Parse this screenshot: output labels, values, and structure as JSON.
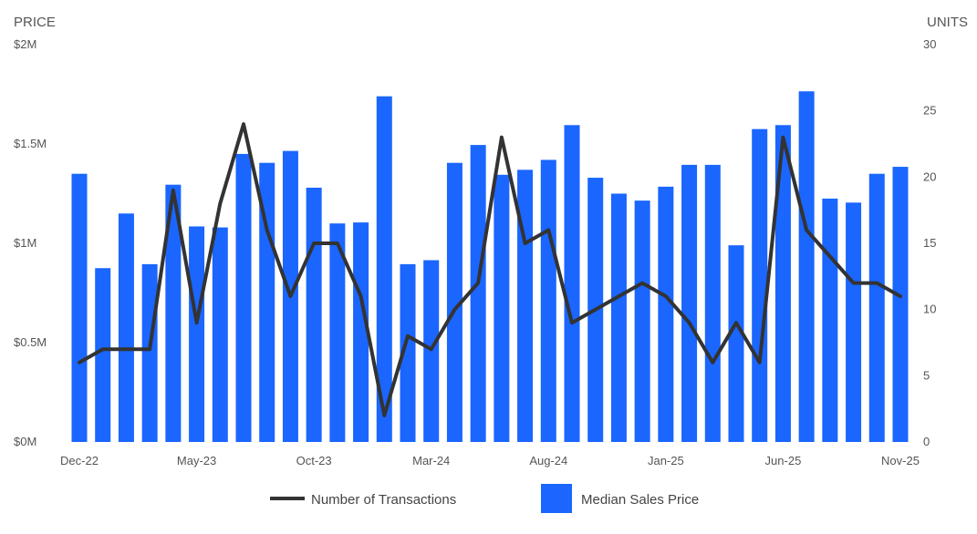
{
  "chart_data": {
    "type": "bar",
    "categories": [
      "Dec-22",
      "Jan-23",
      "Feb-23",
      "Mar-23",
      "Apr-23",
      "May-23",
      "Jun-23",
      "Jul-23",
      "Aug-23",
      "Sep-23",
      "Oct-23",
      "Nov-23",
      "Dec-23",
      "Jan-24",
      "Feb-24",
      "Mar-24",
      "Apr-24",
      "May-24",
      "Jun-24",
      "Jul-24",
      "Aug-24",
      "Sep-24",
      "Oct-24",
      "Nov-24",
      "Dec-24",
      "Jan-25",
      "Feb-25",
      "Mar-25",
      "Apr-25",
      "May-25",
      "Jun-25",
      "Jul-25",
      "Aug-25",
      "Sep-25",
      "Oct-25",
      "Nov-25"
    ],
    "x_tick_labels": [
      "Dec-22",
      "May-23",
      "Oct-23",
      "Mar-24",
      "Aug-24",
      "Jan-25",
      "Jun-25",
      "Nov-25"
    ],
    "series": [
      {
        "name": "Median Sales Price",
        "kind": "bar",
        "axis": "left",
        "color": "#1a66ff",
        "values": [
          1350000,
          875000,
          1150000,
          895000,
          1295000,
          1085000,
          1080000,
          1450000,
          1405000,
          1465000,
          1280000,
          1100000,
          1105000,
          1740000,
          895000,
          915000,
          1405000,
          1495000,
          1345000,
          1370000,
          1420000,
          1595000,
          1330000,
          1250000,
          1215000,
          1285000,
          1395000,
          1395000,
          990000,
          1575000,
          1595000,
          1765000,
          1225000,
          1205000,
          1350000,
          1385000
        ]
      },
      {
        "name": "Number of Transactions",
        "kind": "line",
        "axis": "right",
        "color": "#333333",
        "values": [
          6,
          7,
          7,
          7,
          19,
          9,
          18,
          24,
          16,
          11,
          15,
          15,
          11,
          2,
          8,
          7,
          10,
          12,
          23,
          15,
          16,
          9,
          10,
          11,
          12,
          11,
          9,
          6,
          9,
          6,
          23,
          16,
          14,
          12,
          12,
          11
        ]
      }
    ],
    "left_axis": {
      "title": "PRICE",
      "ylim": [
        0,
        2000000
      ],
      "ticks": [
        0,
        500000,
        1000000,
        1500000,
        2000000
      ],
      "tick_labels": [
        "$0M",
        "$0.5M",
        "$1M",
        "$1.5M",
        "$2M"
      ]
    },
    "right_axis": {
      "title": "UNITS",
      "ylim": [
        0,
        30
      ],
      "ticks": [
        0,
        5,
        10,
        15,
        20,
        25,
        30
      ],
      "tick_labels": [
        "0",
        "5",
        "10",
        "15",
        "20",
        "25",
        "30"
      ]
    },
    "grid": false,
    "legend": {
      "placement": "bottom-center",
      "items": [
        {
          "label": "Number of Transactions",
          "symbol": "line",
          "color": "#333333"
        },
        {
          "label": "Median Sales Price",
          "symbol": "box",
          "color": "#1a66ff"
        }
      ]
    }
  }
}
